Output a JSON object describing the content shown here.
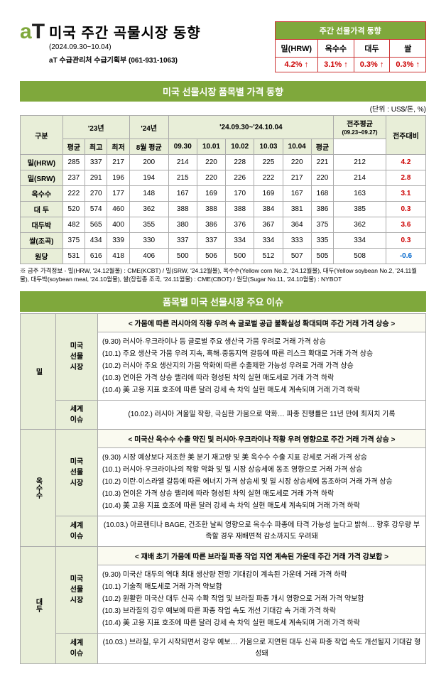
{
  "header": {
    "title": "미국 주간 곡물시장 동향",
    "date_range": "(2024.09.30~10.04)",
    "dept": "aT 수급관리처 수급기획부 (061-931-1063)"
  },
  "summary": {
    "title": "주간 선물가격 동향",
    "cols": [
      "밀(HRW)",
      "옥수수",
      "대두",
      "쌀"
    ],
    "vals": [
      "4.2% ↑",
      "3.1% ↑",
      "0.3% ↑",
      "0.3% ↑"
    ]
  },
  "section1_title": "미국 선물시장 품목별 가격 동향",
  "unit_label": "(단위 : US$/톤, %)",
  "table": {
    "head_period": "'24.09.30~'24.10.04",
    "prev_avg_label": "전주평균",
    "prev_avg_dates": "(09.23~09.27)",
    "rows": [
      {
        "name": "밀(HRW)",
        "y23": [
          "285",
          "337",
          "217"
        ],
        "aug": "200",
        "d": [
          "214",
          "220",
          "228",
          "225",
          "220",
          "221"
        ],
        "prev": "212",
        "chg": "4.2",
        "dir": "pos"
      },
      {
        "name": "밀(SRW)",
        "y23": [
          "237",
          "291",
          "196"
        ],
        "aug": "194",
        "d": [
          "215",
          "220",
          "226",
          "222",
          "217",
          "220"
        ],
        "prev": "214",
        "chg": "2.8",
        "dir": "pos"
      },
      {
        "name": "옥수수",
        "y23": [
          "222",
          "270",
          "177"
        ],
        "aug": "148",
        "d": [
          "167",
          "169",
          "170",
          "169",
          "167",
          "168"
        ],
        "prev": "163",
        "chg": "3.1",
        "dir": "pos"
      },
      {
        "name": "대 두",
        "y23": [
          "520",
          "574",
          "460"
        ],
        "aug": "362",
        "d": [
          "388",
          "388",
          "388",
          "384",
          "381",
          "386"
        ],
        "prev": "385",
        "chg": "0.3",
        "dir": "pos"
      },
      {
        "name": "대두박",
        "y23": [
          "482",
          "565",
          "400"
        ],
        "aug": "355",
        "d": [
          "380",
          "386",
          "376",
          "367",
          "364",
          "375"
        ],
        "prev": "362",
        "chg": "3.6",
        "dir": "pos"
      },
      {
        "name": "쌀(조곡)",
        "y23": [
          "375",
          "434",
          "339"
        ],
        "aug": "330",
        "d": [
          "337",
          "337",
          "334",
          "334",
          "333",
          "335"
        ],
        "prev": "334",
        "chg": "0.3",
        "dir": "pos"
      },
      {
        "name": "원당",
        "y23": [
          "531",
          "616",
          "418"
        ],
        "aug": "406",
        "d": [
          "500",
          "506",
          "500",
          "512",
          "507",
          "505"
        ],
        "prev": "508",
        "chg": "-0.6",
        "dir": "neg"
      }
    ],
    "col_labels": {
      "gubun": "구분",
      "y23": "'23년",
      "y24": "'24년",
      "avg": "평균",
      "high": "최고",
      "low": "최저",
      "aug_avg": "8월 평균",
      "d": [
        "09.30",
        "10.01",
        "10.02",
        "10.03",
        "10.04",
        "평균"
      ],
      "chg": "전주대비"
    }
  },
  "footnote": "※ 금주 가격정보 - 밀(HRW, '24.12월물) : CME(KCBT) / 밀(SRW, '24.12월물), 옥수수(Yellow corn No.2, '24.12월물), 대두(Yellow soybean No.2, '24.11월물), 대두박(soybean meal, '24.10월물), 쌀(장립종 조곡, '24.11월물) : CME(CBOT) / 원당(Sugar No.11, '24.10월물) : NYBOT",
  "section2_title": "품목별 미국 선물시장 주요 이슈",
  "issues": [
    {
      "cat": "밀",
      "head": "< 가뭄에 따른 러시아의 작황 우려 속 글로벌 공급 불확실성 확대되며 주간 거래 가격 상승 >",
      "us": [
        "(9.30) 러시아·우크라이나 등 글로벌 주요 생산국 가뭄 우려로 거래 가격 상승",
        "(10.1) 주요 생산국 가뭄 우려 지속, 흑해·중동지역 갈등에 따른 리스크 확대로 거래 가격 상승",
        "(10.2) 러시아 주요 생산지의 가뭄 악화에 따른 수출제한 가능성 우려로 거래 가격 상승",
        "(10.3) 연이은 가격 상승 랠리에 따라 형성된 차익 실현 매도세로 거래 가격 하락",
        "(10.4) 美 고용 지표 호조에 따른 달러 강세 속 차익 실현 매도세 계속되며 거래 가격 하락"
      ],
      "world": "(10.02.) 러시아 겨울밀 작황, 극심한 가뭄으로 악화… 파종 진행률은 11년 만에 최저치 기록"
    },
    {
      "cat": "옥수수",
      "head": "< 미국산 옥수수 수출 약진 및 러시아·우크라이나 작황 우려 영향으로 주간 거래 가격 상승 >",
      "us": [
        "(9.30) 시장 예상보다 저조한 美 분기 재고량 및 美 옥수수 수출 지표 강세로 거래 가격 상승",
        "(10.1) 러시아·우크라이나의 작황 악화 및 밀 시장 상승세에 동조 영향으로 거래 가격 상승",
        "(10.2) 이란·이스라엘 갈등에 따른 에너지 가격 상승세 및 밀 시장 상승세에 동조하며 거래 가격 상승",
        "(10.3) 연이은 가격 상승 랠리에 따라 형성된 차익 실현 매도세로 거래 가격 하락",
        "(10.4) 美 고용 지표 호조에 따른 달러 강세 속 차익 실현 매도세 계속되며 거래 가격 하락"
      ],
      "world": "(10.03.) 아르헨티나 BAGE, 건조한 날씨 영향으로 옥수수 파종에 타격 가능성 높다고 밝혀… 향후 강우량 부족할 경우 재배면적 감소까지도 우려돼"
    },
    {
      "cat": "대두",
      "head": "< 재배 초기 가뭄에 따른 브라질 파종 작업 지연 계속된 가운데 주간 거래 가격 강보합 >",
      "us": [
        "(9.30) 미국산 대두의 역대 최대 생산량 전망 기대감이 계속된 가운데 거래 가격 하락",
        "(10.1) 기술적 매도세로 거래 가격 약보합",
        "(10.2) 원활한 미국산 대두 신곡 수확 작업 및 브라질 파종 개시 영향으로 거래 가격 약보합",
        "(10.3) 브라질의 강우 예보에 따른 파종 작업 속도 개선 기대감 속 거래 가격 하락",
        "(10.4) 美 고용 지표 호조에 따른 달러 강세 속 차익 실현 매도세 계속되며 거래 가격 하락"
      ],
      "world": "(10.03.) 브라질, 우기 시작되면서 강우 예보… 가뭄으로 지연된 대두 신곡 파종 작업 속도 개선될지 기대감 형성돼"
    }
  ],
  "sub_labels": {
    "us": "미국<br>선물<br>시장",
    "world": "세계<br>이슈"
  }
}
